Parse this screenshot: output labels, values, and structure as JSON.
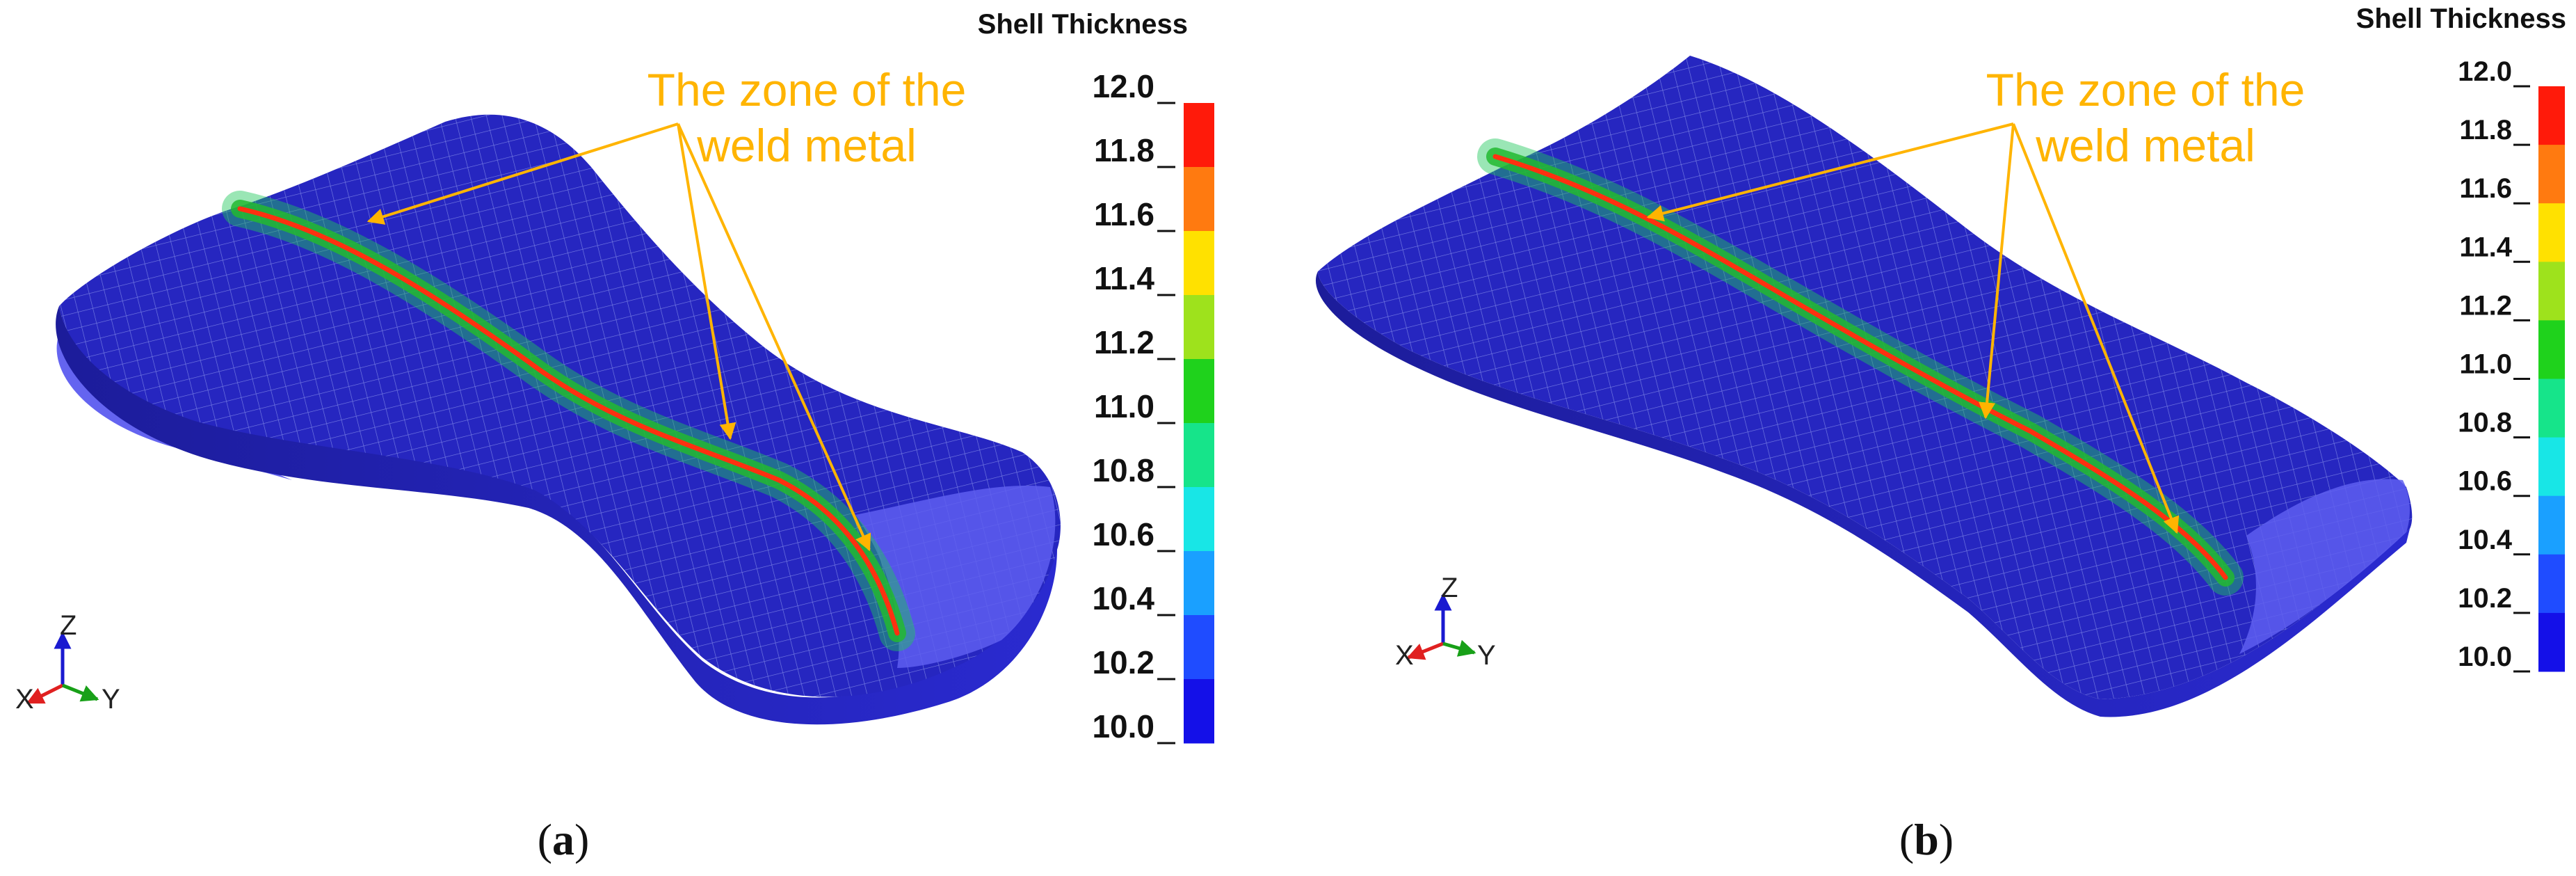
{
  "panels": [
    {
      "legend_title": "Shell Thickness",
      "callout": [
        "The zone of the",
        "weld metal"
      ],
      "caption": {
        "open": "(",
        "letter": "a",
        "close": ")"
      },
      "axis": {
        "z": "Z",
        "x": "X",
        "y": "Y"
      }
    },
    {
      "legend_title": "Shell Thickness",
      "callout": [
        "The zone of the",
        "weld metal"
      ],
      "caption": {
        "open": "(",
        "letter": "b",
        "close": ")"
      },
      "axis": {
        "z": "Z",
        "x": "X",
        "y": "Y"
      }
    }
  ],
  "colorbar": {
    "ticks": [
      "12.0",
      "11.8",
      "11.6",
      "11.4",
      "11.2",
      "11.0",
      "10.8",
      "10.6",
      "10.4",
      "10.2",
      "10.0"
    ],
    "colors": [
      "#ff1a0a",
      "#ff7a10",
      "#ffe100",
      "#9ee21c",
      "#1fd21c",
      "#16e48a",
      "#18e6e6",
      "#1aa0ff",
      "#1f4cff",
      "#1410e8"
    ]
  },
  "colors": {
    "shell": "#2424b8",
    "shell_light": "#5a5ae8",
    "weld_core": "#ff2a10",
    "weld_green": "#22c040",
    "callout": "#ffb400"
  }
}
